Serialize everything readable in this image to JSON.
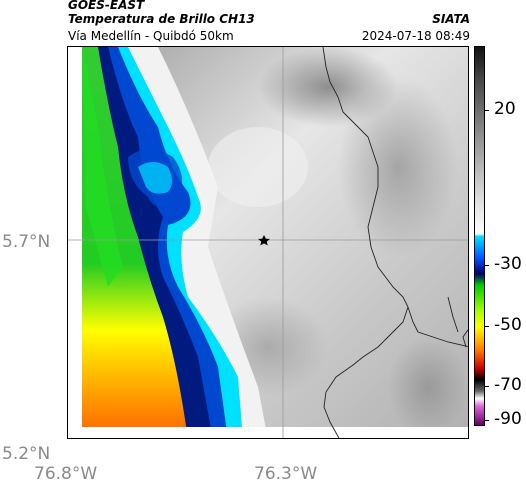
{
  "header": {
    "satellite": "GOES-EAST",
    "product": "Temperatura de Brillo CH13",
    "organization": "SIATA",
    "route": "Vía Medellín - Quibdó 50km",
    "timestamp": "2024-07-18 08:49"
  },
  "map": {
    "lat_labels": [
      "5.7°N",
      "5.2°N"
    ],
    "lon_labels": [
      "76.8°W",
      "76.3°W"
    ],
    "marker_icon": "star-icon"
  },
  "colorbar": {
    "tick_labels": [
      "20",
      "-30",
      "-50",
      "-70",
      "-90"
    ],
    "colors": [
      "#111111",
      "#777777",
      "#dddddd",
      "#00e5ff",
      "#0040ff",
      "#000066",
      "#33cc33",
      "#ffff00",
      "#ff4000",
      "#a00000",
      "#000000",
      "#ffffff",
      "#cc44cc",
      "#660066"
    ]
  }
}
